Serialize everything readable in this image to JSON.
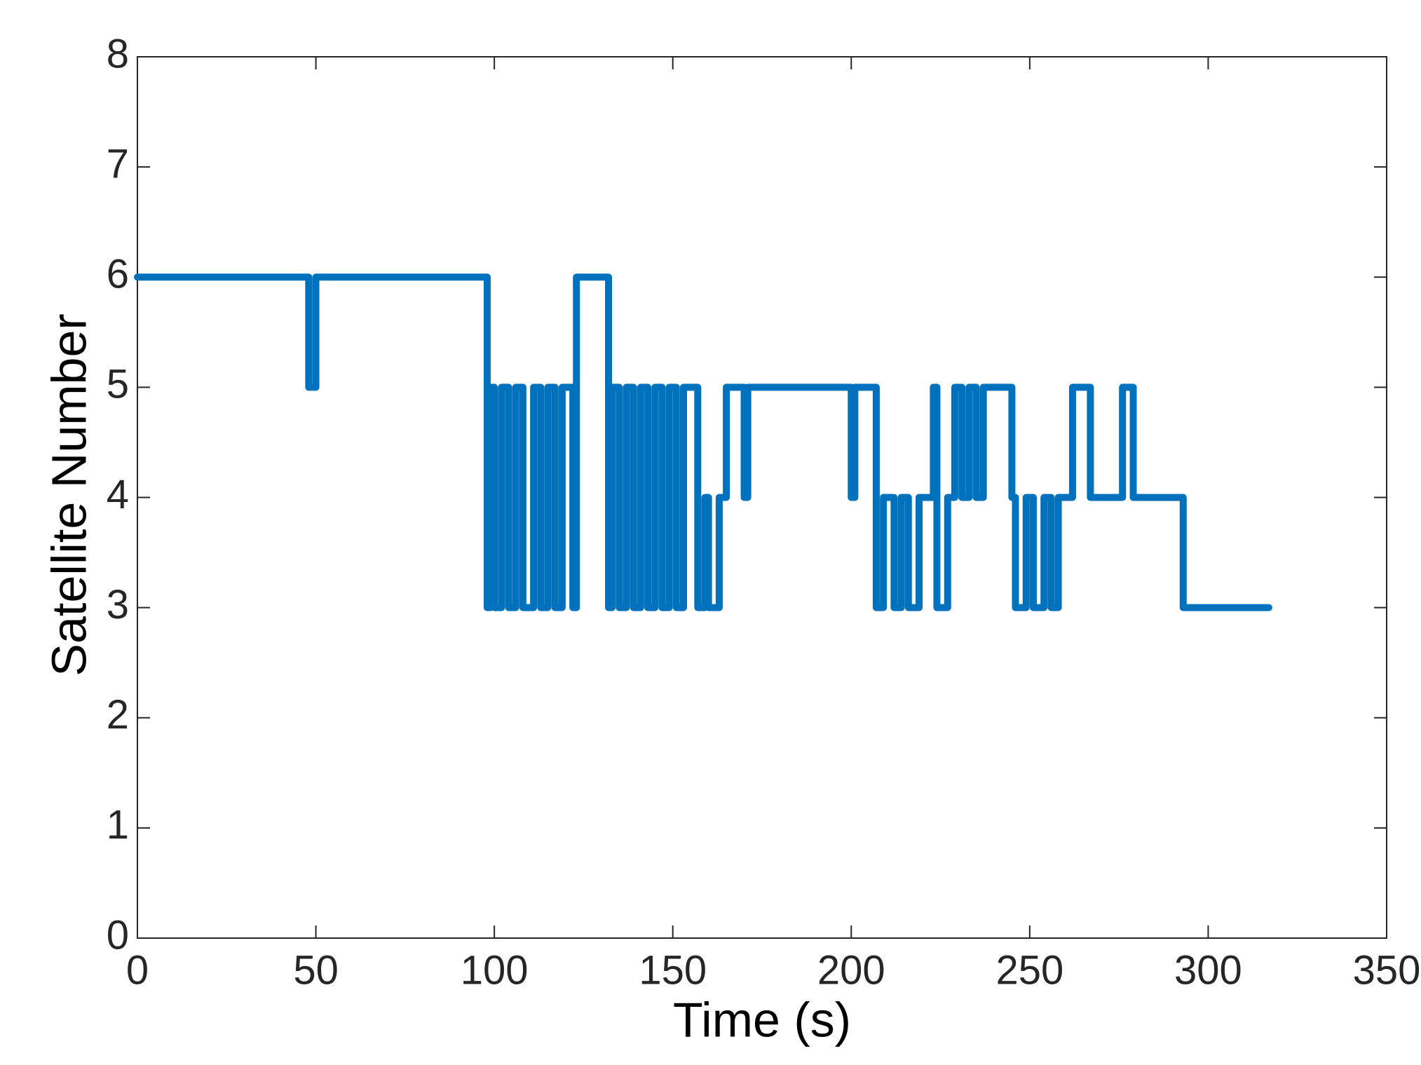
{
  "chart_data": {
    "type": "line",
    "xlabel": "Time (s)",
    "ylabel": "Satellite Number",
    "x": [
      0,
      48,
      48,
      50,
      50,
      98,
      98,
      99,
      99,
      100,
      100,
      102,
      102,
      104,
      104,
      106,
      106,
      108,
      108,
      111,
      111,
      113,
      113,
      115,
      115,
      117,
      117,
      119,
      119,
      122,
      122,
      123,
      123,
      132,
      132,
      133,
      133,
      135,
      135,
      137,
      137,
      139,
      139,
      141,
      141,
      143,
      143,
      145,
      145,
      147,
      147,
      149,
      149,
      151,
      151,
      153,
      153,
      157,
      157,
      159,
      159,
      160,
      160,
      163,
      163,
      165,
      165,
      170,
      170,
      171,
      171,
      200,
      200,
      201,
      201,
      207,
      207,
      209,
      209,
      212,
      212,
      214,
      214,
      216,
      216,
      219,
      219,
      223,
      223,
      224,
      224,
      227,
      227,
      229,
      229,
      231,
      231,
      233,
      233,
      235,
      235,
      237,
      237,
      245,
      245,
      246,
      246,
      249,
      249,
      251,
      251,
      254,
      254,
      256,
      256,
      258,
      258,
      262,
      262,
      267,
      267,
      276,
      276,
      279,
      279,
      293,
      293,
      317
    ],
    "series": [
      {
        "color": "#0072BD",
        "values": [
          6,
          6,
          5,
          5,
          6,
          6,
          3,
          3,
          5,
          5,
          3,
          3,
          5,
          5,
          3,
          3,
          5,
          5,
          3,
          3,
          5,
          5,
          3,
          3,
          5,
          5,
          3,
          3,
          5,
          5,
          3,
          3,
          6,
          6,
          3,
          3,
          5,
          5,
          3,
          3,
          5,
          5,
          3,
          3,
          5,
          5,
          3,
          3,
          5,
          5,
          3,
          3,
          5,
          5,
          3,
          3,
          5,
          5,
          3,
          3,
          4,
          4,
          3,
          3,
          4,
          4,
          5,
          5,
          4,
          4,
          5,
          5,
          4,
          4,
          5,
          5,
          3,
          3,
          4,
          4,
          3,
          3,
          4,
          4,
          3,
          3,
          4,
          4,
          5,
          5,
          3,
          3,
          4,
          4,
          5,
          5,
          4,
          4,
          5,
          5,
          4,
          4,
          5,
          5,
          4,
          4,
          3,
          3,
          4,
          4,
          3,
          3,
          4,
          4,
          3,
          3,
          4,
          4,
          5,
          5,
          4,
          4,
          5,
          5,
          4,
          4,
          3,
          3
        ]
      }
    ],
    "xlim": [
      0,
      350
    ],
    "ylim": [
      0,
      8
    ],
    "xticks": [
      0,
      50,
      100,
      150,
      200,
      250,
      300,
      350
    ],
    "yticks": [
      0,
      1,
      2,
      3,
      4,
      5,
      6,
      7,
      8
    ]
  }
}
